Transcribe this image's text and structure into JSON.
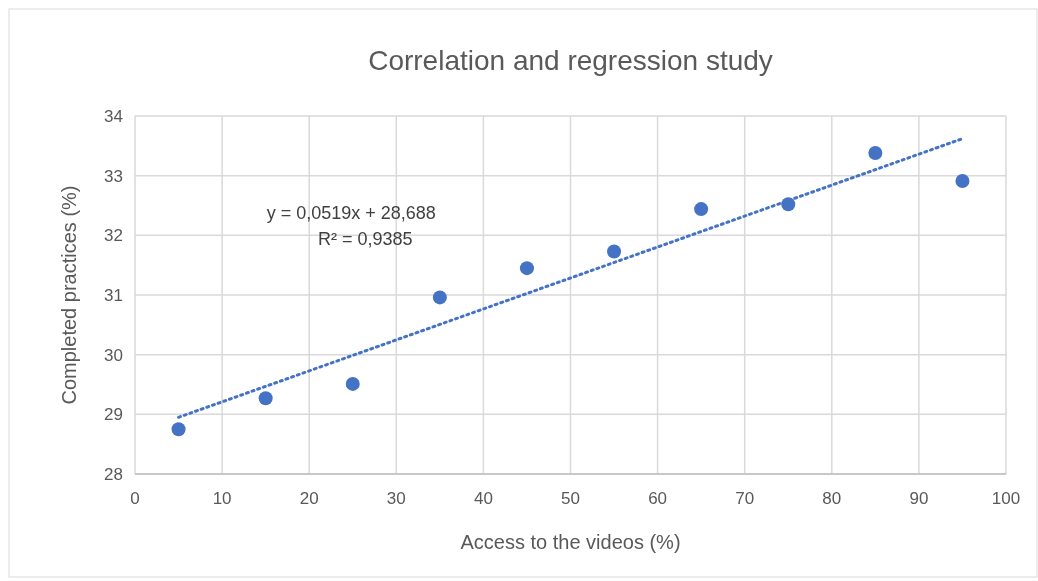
{
  "chart_data": {
    "type": "scatter",
    "title": "Correlation and regression study",
    "xlabel": "Access to the videos (%)",
    "ylabel": "Completed practices (%)",
    "x": [
      5,
      15,
      25,
      35,
      45,
      55,
      65,
      75,
      85,
      95
    ],
    "series": [
      {
        "color": "#4472c4",
        "marker": "circle",
        "values": [
          28.75,
          29.27,
          29.51,
          30.96,
          31.45,
          31.73,
          32.44,
          32.52,
          33.38,
          32.91
        ]
      },
      {
        "type": "line",
        "color": "#4472c4",
        "line_style": "dotted",
        "marker": "none",
        "x": [
          5,
          95
        ],
        "values": [
          28.95,
          33.62
        ]
      }
    ],
    "xlim": [
      0,
      100
    ],
    "xticks": [
      0,
      10,
      20,
      30,
      40,
      50,
      60,
      70,
      80,
      90,
      100
    ],
    "ylim": [
      28,
      34
    ],
    "yticks": [
      28,
      29,
      30,
      31,
      32,
      33,
      34
    ],
    "grid": true,
    "annotations": [
      "y = 0,0519x + 28,688",
      "R² = 0,9385"
    ]
  }
}
